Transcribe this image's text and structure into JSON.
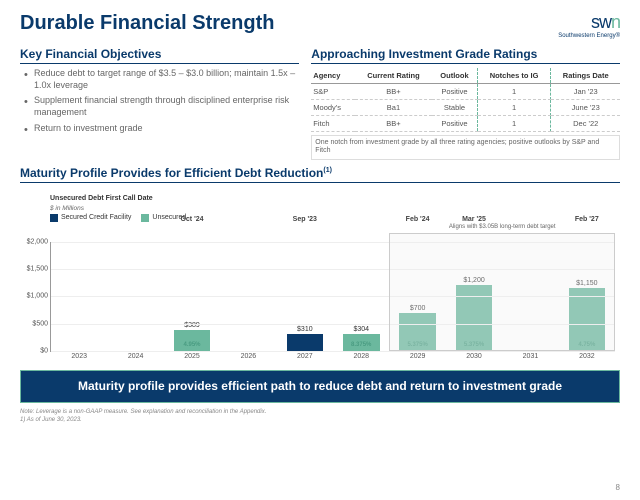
{
  "colors": {
    "navy": "#0a3a6b",
    "teal": "#6bb89e",
    "teal_dark": "#4a9c82",
    "grid": "#eeeeee",
    "text_muted": "#666666"
  },
  "header": {
    "title": "Durable Financial Strength",
    "logo_text": "swn",
    "logo_sub": "Southwestern Energy®"
  },
  "objectives": {
    "title": "Key Financial Objectives",
    "items": [
      "Reduce debt to target range of $3.5 – $3.0 billion; maintain 1.5x – 1.0x leverage",
      "Supplement financial strength through disciplined enterprise risk management",
      "Return to investment grade"
    ]
  },
  "ratings": {
    "title": "Approaching Investment Grade Ratings",
    "columns": [
      "Agency",
      "Current Rating",
      "Outlook",
      "Notches to IG",
      "Ratings Date"
    ],
    "rows": [
      [
        "S&P",
        "BB+",
        "Positive",
        "1",
        "Jan '23"
      ],
      [
        "Moody's",
        "Ba1",
        "Stable",
        "1",
        "June '23"
      ],
      [
        "Fitch",
        "BB+",
        "Positive",
        "1",
        "Dec '22"
      ]
    ],
    "note": "One notch from investment grade by all three rating agencies; positive outlooks by S&P and Fitch"
  },
  "chart": {
    "title": "Maturity Profile Provides for Efficient Debt Reduction",
    "sup": "(1)",
    "ylabel_prefix": "$",
    "sub1": "Unsecured Debt First Call Date",
    "sub2": "$ in Millions",
    "legend": [
      {
        "label": "Secured Credit Facility",
        "color": "#0a3a6b"
      },
      {
        "label": "Unsecured",
        "color": "#6bb89e"
      }
    ],
    "ymax": 2000,
    "yticks": [
      0,
      500,
      1000,
      1500,
      2000
    ],
    "callouts": [
      "Oct '24",
      "Sep '23",
      "Feb '24",
      "Mar '25",
      "Feb '27"
    ],
    "callout_cols": [
      2,
      4,
      6,
      7,
      9
    ],
    "target_label": "Aligns with $3.05B long-term debt target",
    "bars": [
      {
        "x": "2023",
        "val": null
      },
      {
        "x": "2024",
        "val": null
      },
      {
        "x": "2025",
        "val": 389,
        "type": "unsecured",
        "rate": "4.95%"
      },
      {
        "x": "2026",
        "val": null
      },
      {
        "x": "2027",
        "val": 310,
        "type": "secured"
      },
      {
        "x": "2028",
        "val": 304,
        "type": "unsecured",
        "rate": "8.375%"
      },
      {
        "x": "2029",
        "val": 700,
        "type": "unsecured",
        "rate": "5.375%"
      },
      {
        "x": "2030",
        "val": 1200,
        "type": "unsecured",
        "rate": "5.375%"
      },
      {
        "x": "2031",
        "val": null
      },
      {
        "x": "2032",
        "val": 1150,
        "type": "unsecured",
        "rate": "4.75%"
      }
    ]
  },
  "banner": "Maturity profile provides efficient path to reduce debt and return to investment grade",
  "footnotes": [
    "Note: Leverage is a non-GAAP measure. See explanation and reconciliation in the Appendix.",
    "1) As of June 30, 2023."
  ],
  "page": "8"
}
